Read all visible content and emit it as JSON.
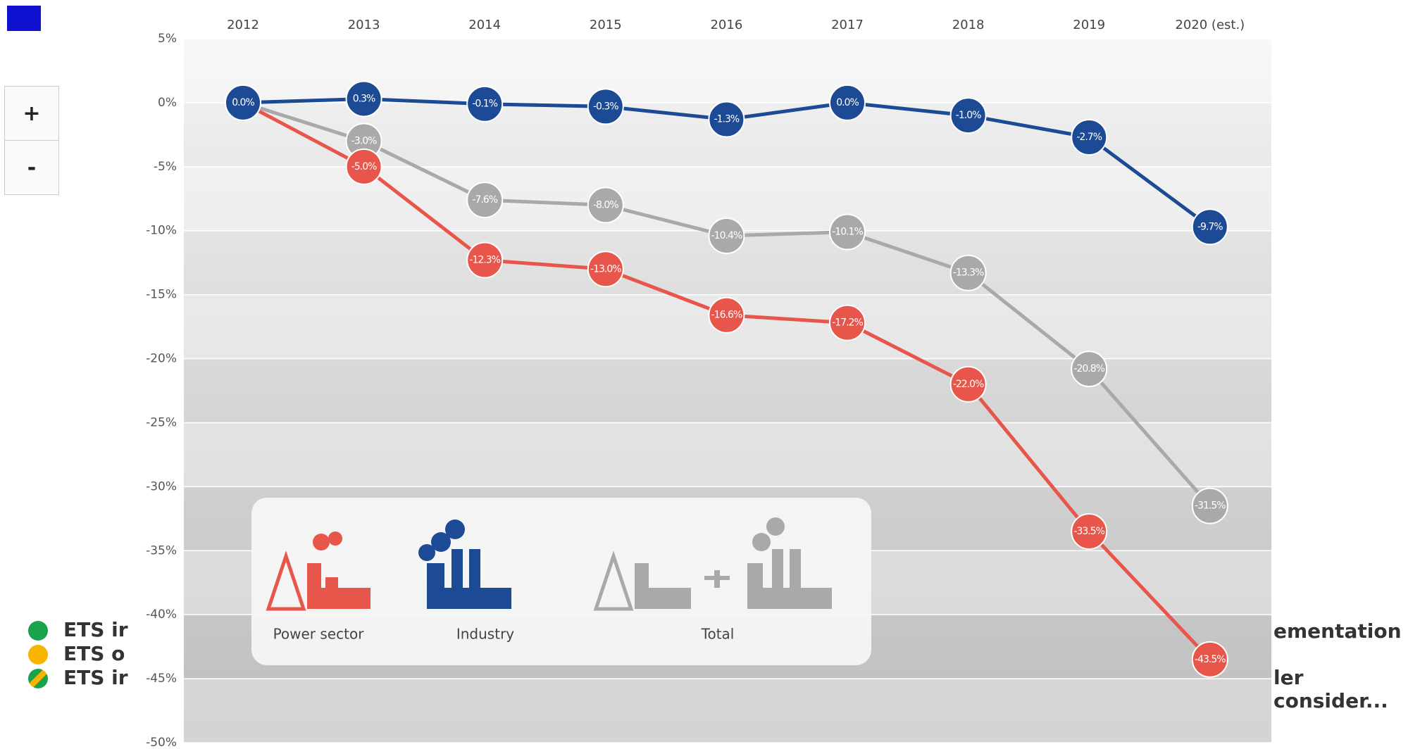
{
  "chart_data": {
    "type": "line",
    "categories": [
      "2012",
      "2013",
      "2014",
      "2015",
      "2016",
      "2017",
      "2018",
      "2019",
      "2020 (est.)"
    ],
    "series": [
      {
        "name": "Power sector",
        "color": "#e8554a",
        "values": [
          0,
          -5.0,
          -12.3,
          -13.0,
          -16.6,
          -17.2,
          -22.0,
          -33.5,
          -43.5
        ],
        "value_labels": [
          "0.0%",
          "-5.0%",
          "-12.3%",
          "-13.0%",
          "-16.6%",
          "-17.2%",
          "-22.0%",
          "-33.5%",
          "-43.5%"
        ]
      },
      {
        "name": "Industry",
        "color": "#1c4a94",
        "values": [
          0,
          0.3,
          -0.1,
          -0.3,
          -1.3,
          0.0,
          -1.0,
          -2.7,
          -9.7
        ],
        "value_labels": [
          "0.0%",
          "0.3%",
          "-0.1%",
          "-0.3%",
          "-1.3%",
          "0.0%",
          "-1.0%",
          "-2.7%",
          "-9.7%"
        ]
      },
      {
        "name": "Total",
        "color": "#a9a9a9",
        "values": [
          0,
          -3.0,
          -7.6,
          -8.0,
          -10.4,
          -10.1,
          -13.3,
          -20.8,
          -31.5
        ],
        "value_labels": [
          "0.0%",
          "-3.0%",
          "-7.6%",
          "-8.0%",
          "-10.4%",
          "-10.1%",
          "-13.3%",
          "-20.8%",
          "-31.5%"
        ]
      }
    ],
    "ylim": [
      -50,
      5
    ],
    "yticks": [
      {
        "value": 5,
        "label": "5%"
      },
      {
        "value": 0,
        "label": "0%"
      },
      {
        "value": -5,
        "label": "-5%"
      },
      {
        "value": -10,
        "label": "-10%"
      },
      {
        "value": -15,
        "label": "-15%"
      },
      {
        "value": -20,
        "label": "-20%"
      },
      {
        "value": -25,
        "label": "-25%"
      },
      {
        "value": -30,
        "label": "-30%"
      },
      {
        "value": -35,
        "label": "-35%"
      },
      {
        "value": -40,
        "label": "-40%"
      },
      {
        "value": -45,
        "label": "-45%"
      },
      {
        "value": -50,
        "label": "-50%"
      }
    ],
    "grid": true
  },
  "ui": {
    "zoom_in": "+",
    "zoom_out": "-",
    "legend": [
      "ETS ir",
      "ETS o",
      "ETS ir"
    ],
    "right_texts": [
      "ementation",
      "ler consider..."
    ]
  }
}
